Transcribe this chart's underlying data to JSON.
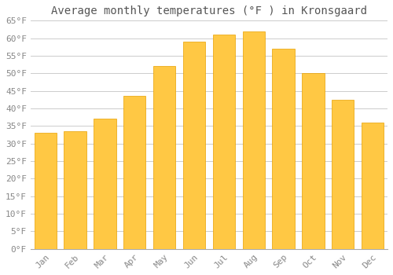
{
  "title": "Average monthly temperatures (°F ) in Kronsgaard",
  "months": [
    "Jan",
    "Feb",
    "Mar",
    "Apr",
    "May",
    "Jun",
    "Jul",
    "Aug",
    "Sep",
    "Oct",
    "Nov",
    "Dec"
  ],
  "values": [
    33,
    33.5,
    37,
    43.5,
    52,
    59,
    61,
    62,
    57,
    50,
    42.5,
    36
  ],
  "ylim": [
    0,
    65
  ],
  "yticks": [
    0,
    5,
    10,
    15,
    20,
    25,
    30,
    35,
    40,
    45,
    50,
    55,
    60,
    65
  ],
  "bar_color_top": "#FFC844",
  "bar_color_bottom": "#FFB300",
  "bar_edge_color": "#E8A000",
  "background_color": "#FFFFFF",
  "plot_bg_color": "#FFFFFF",
  "grid_color": "#CCCCCC",
  "title_fontsize": 10,
  "tick_fontsize": 8,
  "font_family": "monospace",
  "tick_color": "#888888",
  "title_color": "#555555"
}
